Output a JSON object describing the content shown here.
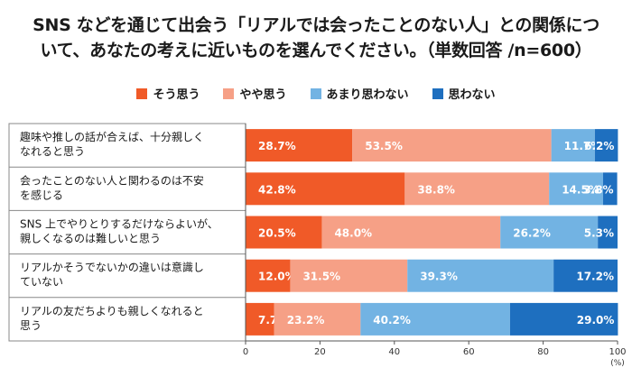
{
  "title_line1": "SNS などを通じて出会う「リアルでは会ったことのない人」との関係につ",
  "title_line2": "いて、あなたの考えに近いものを選んでください。（単数回答 /n=600）",
  "colors": {
    "series": [
      "#f05a28",
      "#f6a086",
      "#72b3e3",
      "#1e6fbf"
    ]
  },
  "chart_data": {
    "type": "bar",
    "orientation": "horizontal",
    "stacked": true,
    "categories": [
      [
        "趣味や推しの話が合えば、十分親しく",
        "なれると思う"
      ],
      [
        "会ったことのない人と関わるのは不安",
        "を感じる"
      ],
      [
        "SNS 上でやりとりするだけならよいが、",
        "親しくなるのは難しいと思う"
      ],
      [
        "リアルかそうでないかの違いは意識し",
        "ていない"
      ],
      [
        "リアルの友だちよりも親しくなれると",
        "思う"
      ]
    ],
    "series": [
      {
        "name": "そう思う",
        "values": [
          28.7,
          42.8,
          20.5,
          12.0,
          7.7
        ]
      },
      {
        "name": "やや思う",
        "values": [
          53.5,
          38.8,
          48.0,
          31.5,
          23.2
        ]
      },
      {
        "name": "あまり思わない",
        "values": [
          11.7,
          14.5,
          26.2,
          39.3,
          40.2
        ]
      },
      {
        "name": "思わない",
        "values": [
          6.2,
          3.8,
          5.3,
          17.2,
          29.0
        ]
      }
    ],
    "value_labels": [
      [
        "28.7%",
        "53.5%",
        "11.7%",
        "6.2%"
      ],
      [
        "42.8%",
        "38.8%",
        "14.5%",
        "3.8%"
      ],
      [
        "20.5%",
        "48.0%",
        "26.2%",
        "5.3%"
      ],
      [
        "12.0%",
        "31.5%",
        "39.3%",
        "17.2%"
      ],
      [
        "7.7%",
        "23.2%",
        "40.2%",
        "29.0%"
      ]
    ],
    "xlim": [
      0,
      100
    ],
    "xticks": [
      "0",
      "20",
      "40",
      "60",
      "80",
      "100"
    ],
    "x_unit": "(%)",
    "legend_position": "top"
  }
}
